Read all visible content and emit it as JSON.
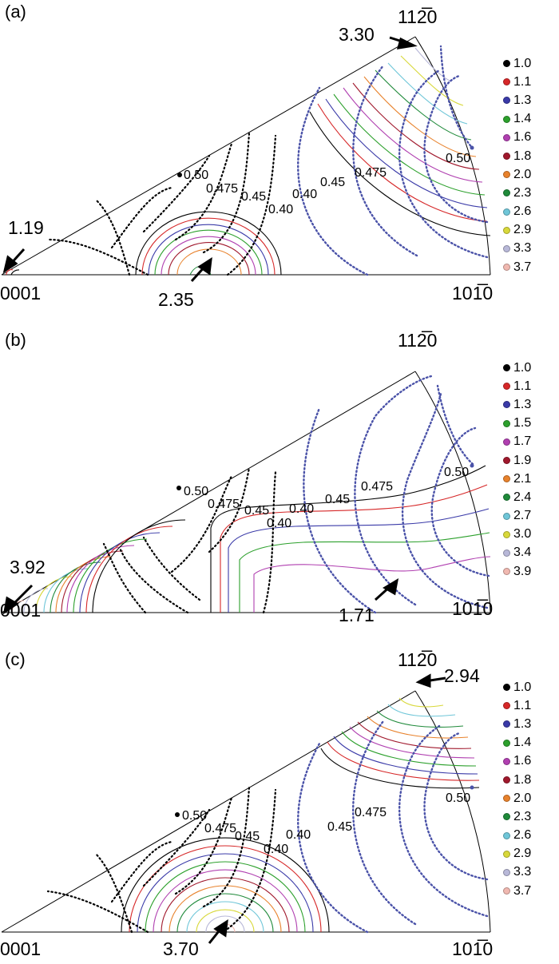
{
  "panels": [
    {
      "label": "(a)",
      "corners": {
        "origin": "0001",
        "right": "101̅0",
        "top": "112̅0"
      },
      "max_annotation": "3.30",
      "min_annotation": "1.19",
      "center_annotation": "2.35",
      "schmid_labels": {
        "black_050": "0.50",
        "black_0475": "0.475",
        "black_045": "0.45",
        "black_040": "0.40",
        "blue_040": "0.40",
        "blue_045": "0.45",
        "blue_0475": "0.475",
        "blue_050": "0.50"
      },
      "legend": [
        {
          "value": "1.0",
          "color": "#000000"
        },
        {
          "value": "1.1",
          "color": "#d62728"
        },
        {
          "value": "1.3",
          "color": "#3a3aa8"
        },
        {
          "value": "1.4",
          "color": "#2ca02c"
        },
        {
          "value": "1.6",
          "color": "#b03fb0"
        },
        {
          "value": "1.8",
          "color": "#a0182c"
        },
        {
          "value": "2.0",
          "color": "#e8822c"
        },
        {
          "value": "2.3",
          "color": "#1f8a3a"
        },
        {
          "value": "2.6",
          "color": "#6fc6d8"
        },
        {
          "value": "2.9",
          "color": "#d8d83a"
        },
        {
          "value": "3.3",
          "color": "#b8b8d8"
        },
        {
          "value": "3.7",
          "color": "#f0b8b0"
        }
      ]
    },
    {
      "label": "(b)",
      "corners": {
        "origin": "0001",
        "right": "101̅0",
        "top": "112̅0"
      },
      "max_annotation": "3.92",
      "min_annotation": "1.71",
      "schmid_labels": {
        "black_050": "0.50",
        "black_0475": "0.475",
        "black_045": "0.45",
        "black_040": "0.40",
        "mid_040": "0.40",
        "blue_045": "0.45",
        "blue_0475": "0.475",
        "blue_050": "0.50"
      },
      "legend": [
        {
          "value": "1.0",
          "color": "#000000"
        },
        {
          "value": "1.1",
          "color": "#d62728"
        },
        {
          "value": "1.3",
          "color": "#3a3aa8"
        },
        {
          "value": "1.5",
          "color": "#2ca02c"
        },
        {
          "value": "1.7",
          "color": "#b03fb0"
        },
        {
          "value": "1.9",
          "color": "#a0182c"
        },
        {
          "value": "2.1",
          "color": "#e8822c"
        },
        {
          "value": "2.4",
          "color": "#1f8a3a"
        },
        {
          "value": "2.7",
          "color": "#6fc6d8"
        },
        {
          "value": "3.0",
          "color": "#d8d83a"
        },
        {
          "value": "3.4",
          "color": "#b8b8d8"
        },
        {
          "value": "3.9",
          "color": "#f0b8b0"
        }
      ]
    },
    {
      "label": "(c)",
      "corners": {
        "origin": "0001",
        "right": "101̅0",
        "top": "112̅0"
      },
      "max_annotation": "2.94",
      "center_annotation": "3.70",
      "schmid_labels": {
        "black_050": "0.50",
        "black_0475": "0.475",
        "black_045": "0.45",
        "black_040": "0.40",
        "blue_040": "0.40",
        "blue_045": "0.45",
        "blue_0475": "0.475",
        "blue_050": "0.50"
      },
      "legend": [
        {
          "value": "1.0",
          "color": "#000000"
        },
        {
          "value": "1.1",
          "color": "#d62728"
        },
        {
          "value": "1.3",
          "color": "#3a3aa8"
        },
        {
          "value": "1.4",
          "color": "#2ca02c"
        },
        {
          "value": "1.6",
          "color": "#b03fb0"
        },
        {
          "value": "1.8",
          "color": "#a0182c"
        },
        {
          "value": "2.0",
          "color": "#e8822c"
        },
        {
          "value": "2.3",
          "color": "#1f8a3a"
        },
        {
          "value": "2.6",
          "color": "#6fc6d8"
        },
        {
          "value": "2.9",
          "color": "#d8d83a"
        },
        {
          "value": "3.3",
          "color": "#b8b8d8"
        },
        {
          "value": "3.7",
          "color": "#f0b8b0"
        }
      ]
    }
  ]
}
